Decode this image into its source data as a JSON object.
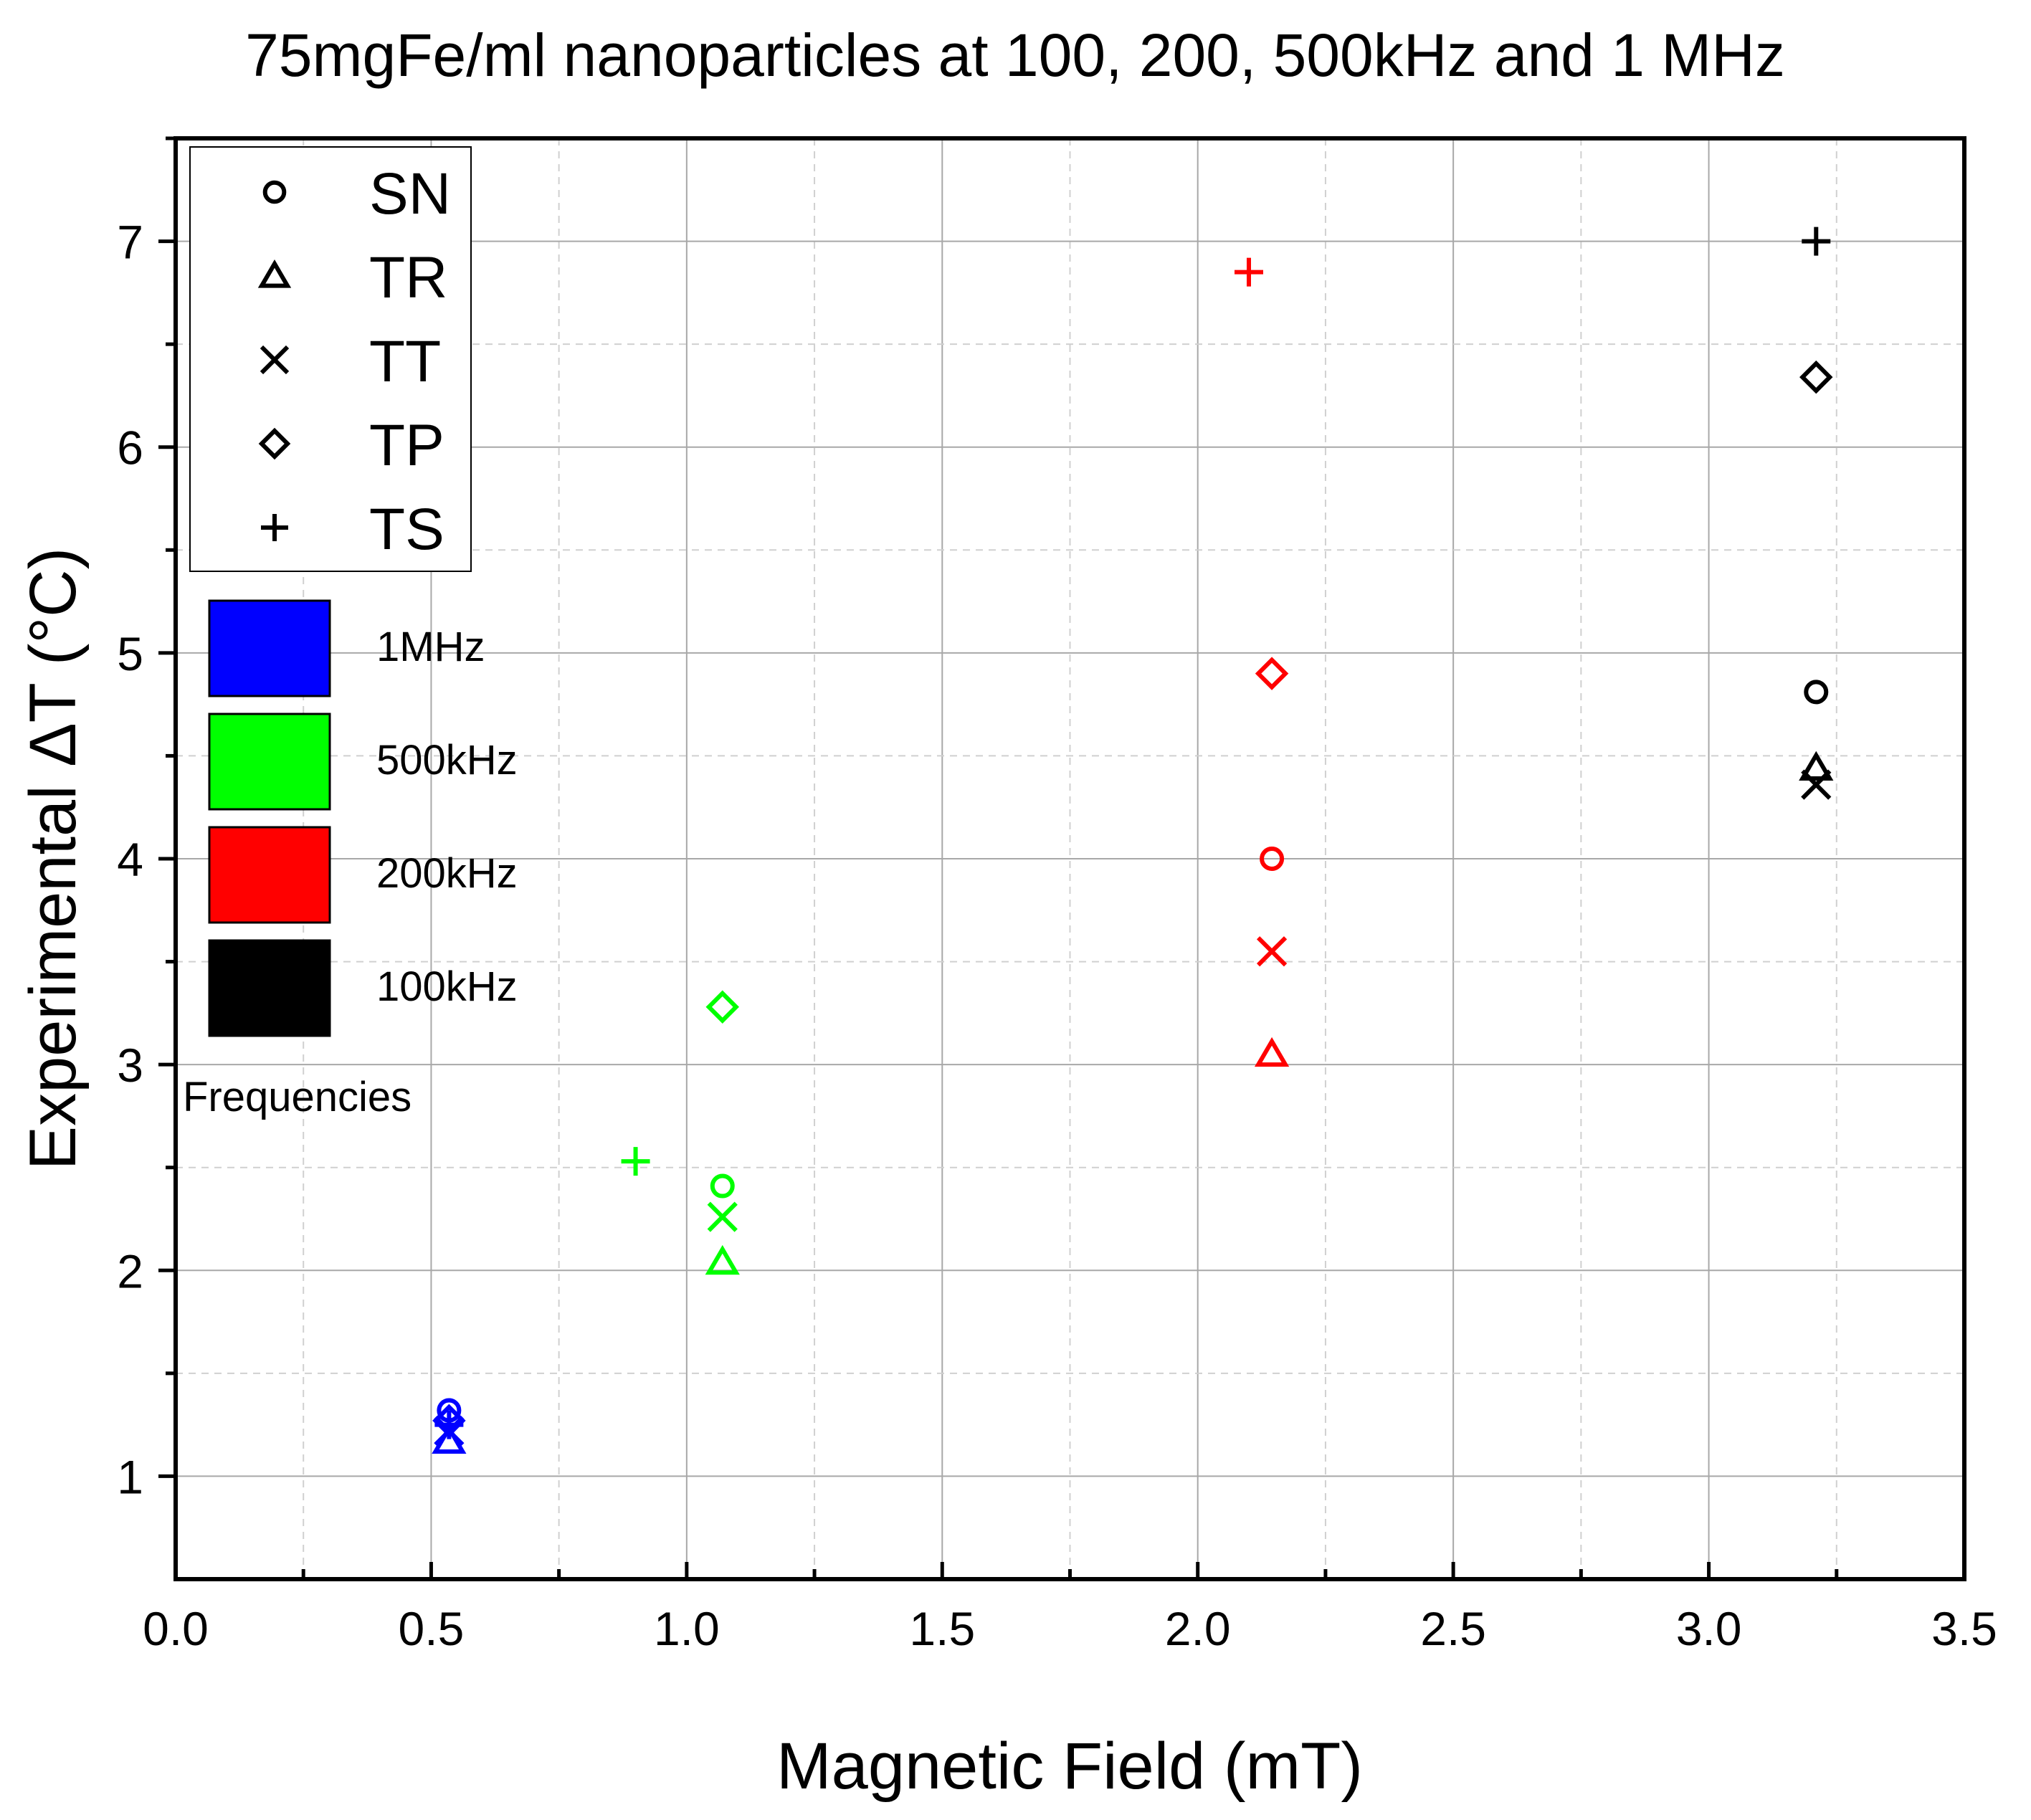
{
  "chart_data": {
    "type": "scatter",
    "title": "75mgFe/ml nanoparticles at 100, 200, 500kHz and 1 MHz",
    "xlabel": "Magnetic Field (mT)",
    "ylabel": "Experimental ΔT (°C)",
    "xlim": [
      0.0,
      3.5
    ],
    "ylim": [
      0.5,
      7.5
    ],
    "xticks": [
      "0.0",
      "0.5",
      "1.0",
      "1.5",
      "2.0",
      "2.5",
      "3.0",
      "3.5"
    ],
    "yticks": [
      "1",
      "2",
      "3",
      "4",
      "5",
      "6",
      "7"
    ],
    "grid": true,
    "marker_legend": [
      {
        "label": "SN",
        "marker": "circle"
      },
      {
        "label": "TR",
        "marker": "triangle"
      },
      {
        "label": "TT",
        "marker": "x"
      },
      {
        "label": "TP",
        "marker": "diamond"
      },
      {
        "label": "TS",
        "marker": "plus"
      }
    ],
    "color_legend": {
      "title": "Frequencies",
      "items": [
        {
          "label": "1MHz",
          "color": "#0000ff"
        },
        {
          "label": "500kHz",
          "color": "#00ff00"
        },
        {
          "label": "200kHz",
          "color": "#ff0000"
        },
        {
          "label": "100kHz",
          "color": "#000000"
        }
      ]
    },
    "series": [
      {
        "name": "1MHz",
        "color": "#0000ff",
        "points": [
          {
            "marker": "SN",
            "x": 0.535,
            "y": 1.32
          },
          {
            "marker": "TR",
            "x": 0.535,
            "y": 1.17
          },
          {
            "marker": "TT",
            "x": 0.535,
            "y": 1.22
          },
          {
            "marker": "TP",
            "x": 0.535,
            "y": 1.27
          },
          {
            "marker": "TS",
            "x": 0.535,
            "y": 1.25
          }
        ]
      },
      {
        "name": "500kHz",
        "color": "#00ff00",
        "points": [
          {
            "marker": "SN",
            "x": 1.07,
            "y": 2.41
          },
          {
            "marker": "TR",
            "x": 1.07,
            "y": 2.04
          },
          {
            "marker": "TT",
            "x": 1.07,
            "y": 2.26
          },
          {
            "marker": "TP",
            "x": 1.07,
            "y": 3.28
          },
          {
            "marker": "TS",
            "x": 0.9,
            "y": 2.53
          }
        ]
      },
      {
        "name": "200kHz",
        "color": "#ff0000",
        "points": [
          {
            "marker": "SN",
            "x": 2.145,
            "y": 4.0
          },
          {
            "marker": "TR",
            "x": 2.145,
            "y": 3.05
          },
          {
            "marker": "TT",
            "x": 2.145,
            "y": 3.55
          },
          {
            "marker": "TP",
            "x": 2.145,
            "y": 4.9
          },
          {
            "marker": "TS",
            "x": 2.1,
            "y": 6.85
          }
        ]
      },
      {
        "name": "100kHz",
        "color": "#000000",
        "points": [
          {
            "marker": "SN",
            "x": 3.21,
            "y": 4.81
          },
          {
            "marker": "TR",
            "x": 3.21,
            "y": 4.44
          },
          {
            "marker": "TT",
            "x": 3.21,
            "y": 4.36
          },
          {
            "marker": "TP",
            "x": 3.21,
            "y": 6.34
          },
          {
            "marker": "TS",
            "x": 3.21,
            "y": 7.0
          }
        ]
      }
    ]
  }
}
